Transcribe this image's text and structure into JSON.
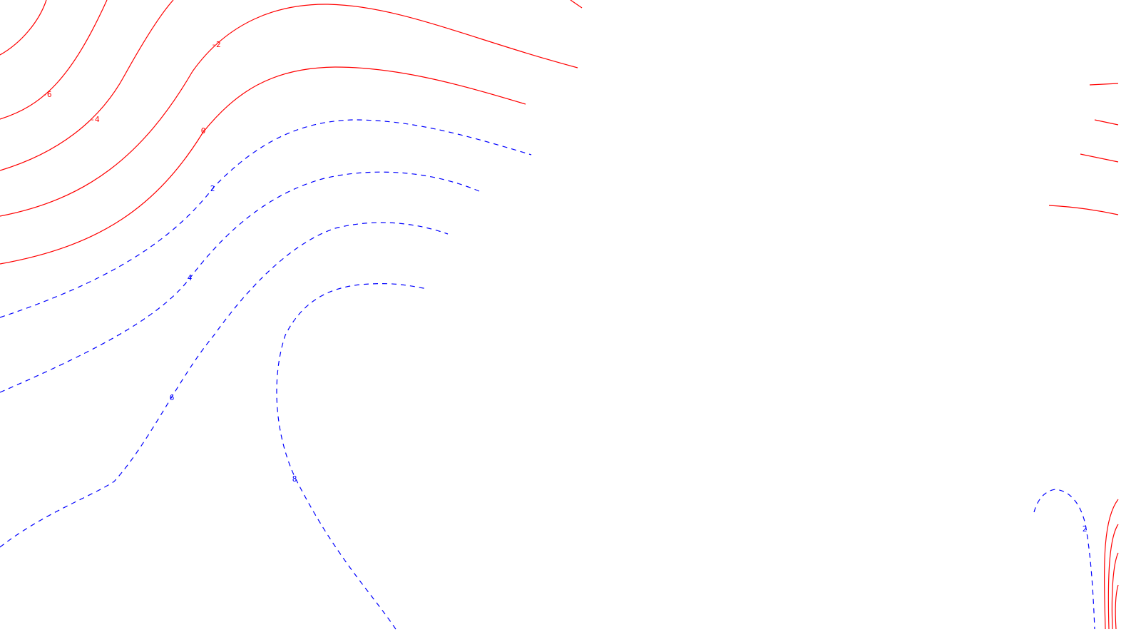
{
  "chart_data": {
    "type": "contour",
    "title": "",
    "xlabel": "",
    "ylabel": "",
    "grid": false,
    "legend": "none",
    "colors": {
      "negative_and_zero": "#ff0000",
      "positive": "#0000ff",
      "background": "#ffffff"
    },
    "line_styles": {
      "negative_and_zero": "solid",
      "positive": "dashed"
    },
    "labeled_levels": [
      -6,
      -4,
      -2,
      0,
      2,
      4,
      6,
      8,
      2
    ],
    "level_labels": [
      "-6",
      "-4",
      "-2",
      "0",
      "2",
      "4",
      "6",
      "8",
      "2"
    ]
  }
}
